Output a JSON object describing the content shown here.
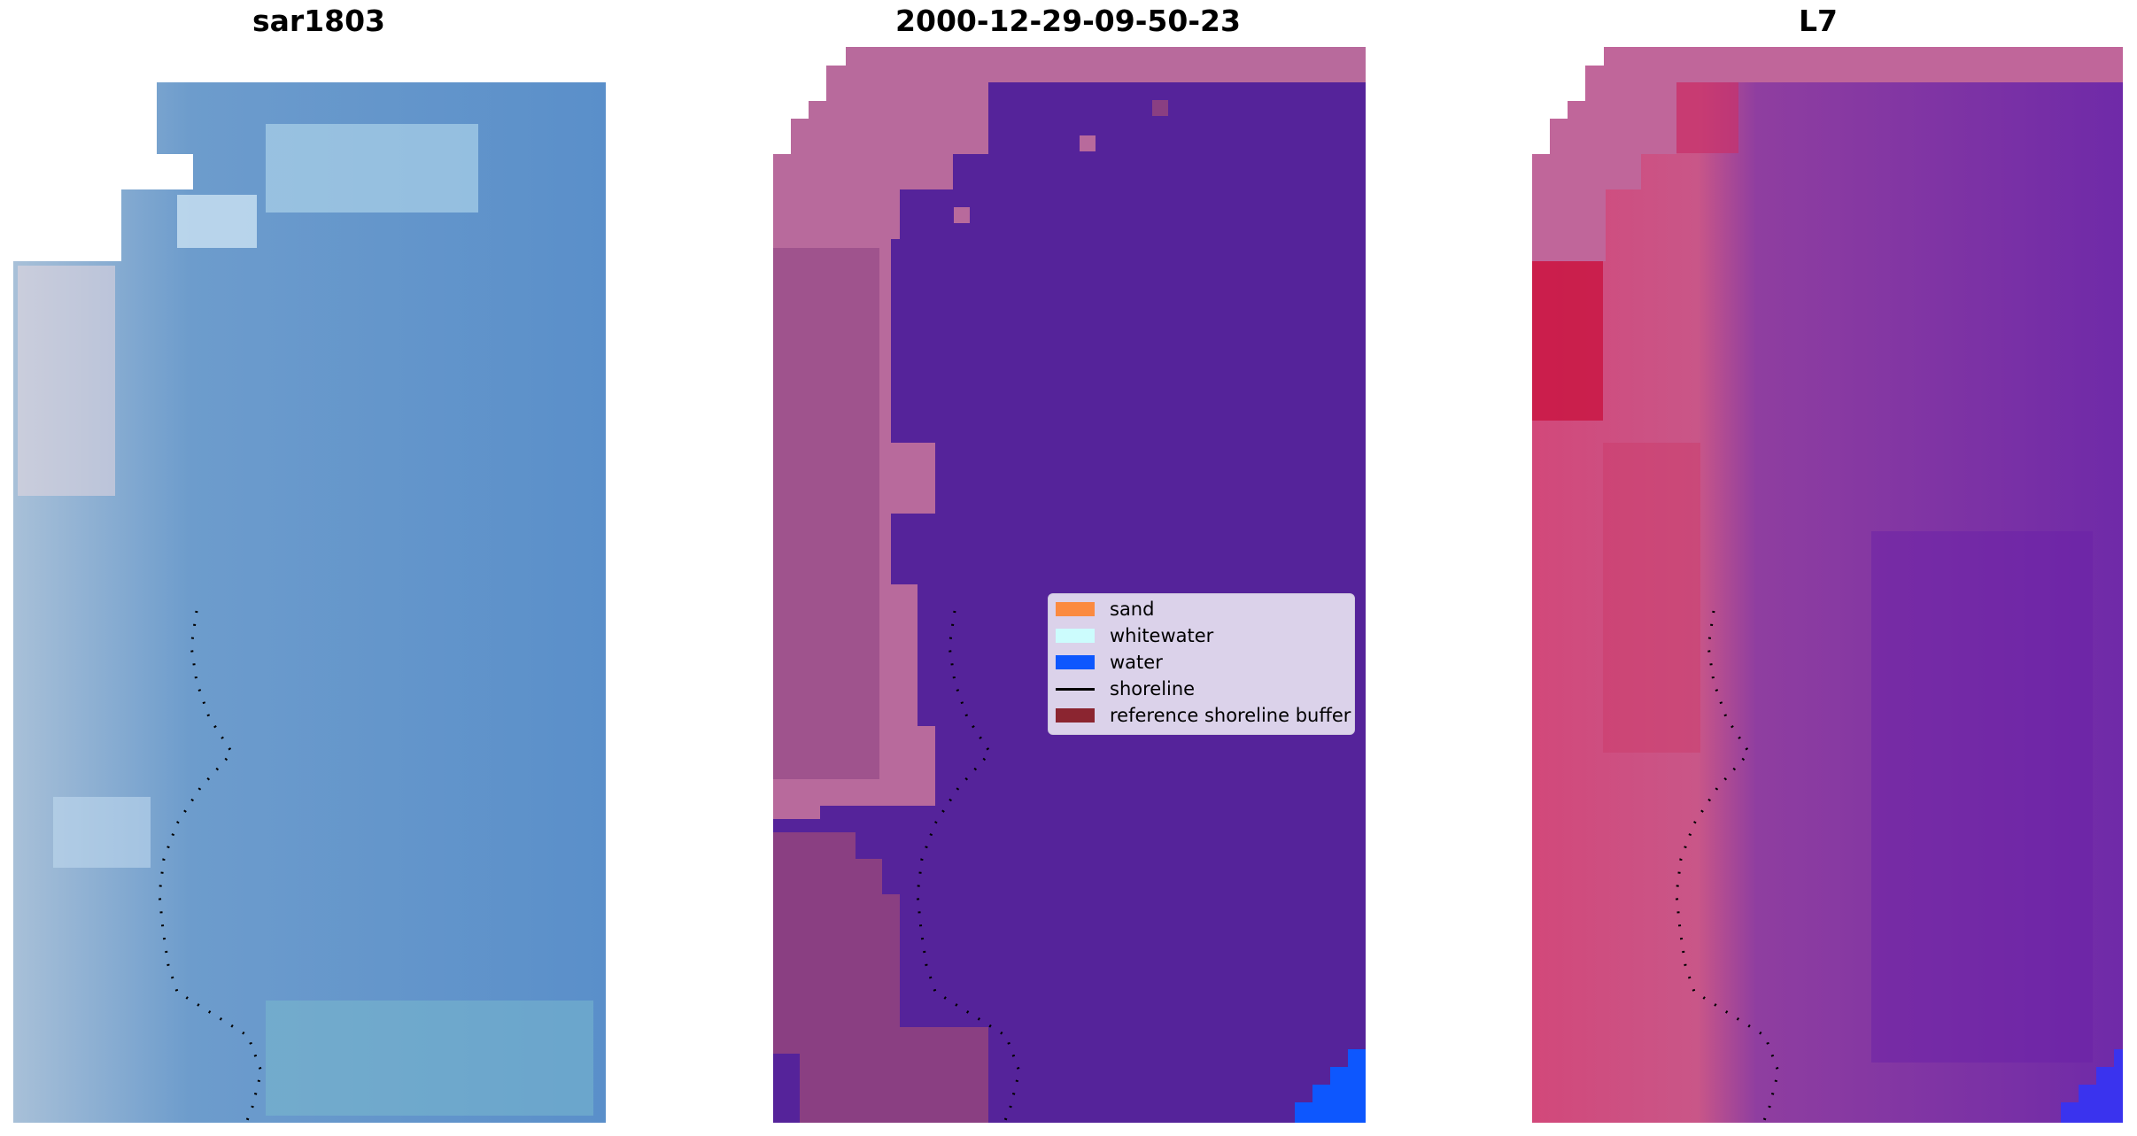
{
  "panels": [
    {
      "title": "sar1803"
    },
    {
      "title": "2000-12-29-09-50-23"
    },
    {
      "title": "L7"
    }
  ],
  "legend": {
    "items": [
      {
        "label": "sand",
        "color": "#fb8a40"
      },
      {
        "label": "whitewater",
        "color": "#ccfcfd"
      },
      {
        "label": "water",
        "color": "#0d57fe"
      },
      {
        "label": "shoreline",
        "color": "#000000"
      },
      {
        "label": "reference shoreline buffer",
        "color": "#8b2530"
      }
    ]
  },
  "colors": {
    "rgb_water": "#5b90c8",
    "class_water": "#55239a",
    "class_land": "#b86a9c",
    "ndwi_land": "#d2487a",
    "ndwi_water": "#7a2ea8"
  }
}
